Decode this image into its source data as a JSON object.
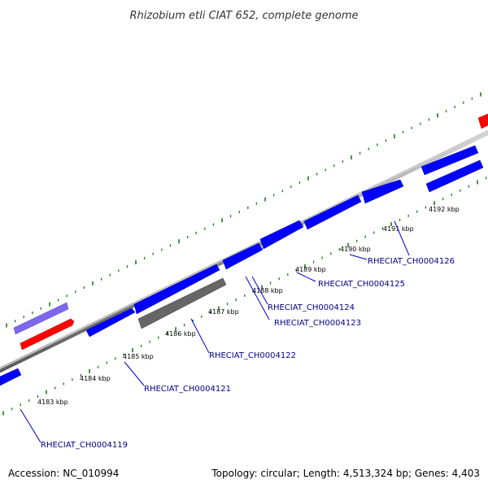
{
  "title": "Rhizobium etli CIAT 652, complete genome",
  "footer": {
    "accession": "Accession: NC_010994",
    "summary": "Topology: circular; Length: 4,513,324 bp; Genes: 4,403"
  },
  "colors": {
    "background": "#ffffff",
    "backbone": "#9a9a9a",
    "tick": "#1a7a1a",
    "gene_blue": "#0000ff",
    "gene_red": "#ff0000",
    "gene_lavender": "#7b68ee",
    "gene_gray": "#666666",
    "label_text": "#00008b"
  },
  "kbp_labels": [
    "4183 kbp",
    "4184 kbp",
    "4185 kbp",
    "4186 kbp",
    "4187 kbp",
    "4188 kbp",
    "4189 kbp",
    "4190 kbp",
    "4191 kbp",
    "4192 kbp"
  ],
  "gene_labels": [
    "RHECIAT_CH0004119",
    "RHECIAT_CH0004121",
    "RHECIAT_CH0004122",
    "RHECIAT_CH0004123",
    "RHECIAT_CH0004124",
    "RHECIAT_CH0004125",
    "RHECIAT_CH0004126"
  ]
}
